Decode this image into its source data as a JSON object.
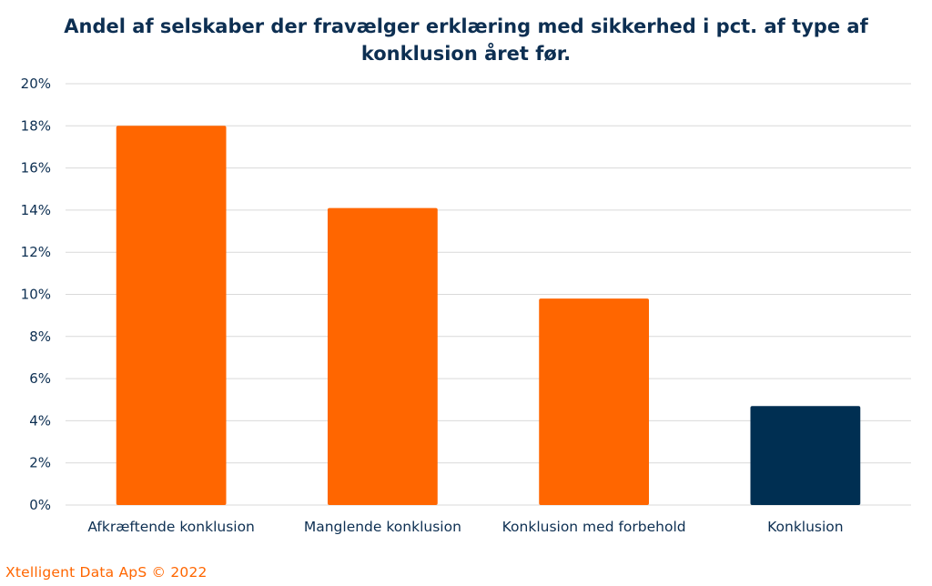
{
  "chart_data": {
    "type": "bar",
    "title_lines": [
      "Andel af selskaber der fravælger erklæring med sikkerhed i pct. af type af",
      "konklusion året før."
    ],
    "categories": [
      "Afkræftende konklusion",
      "Manglende konklusion",
      "Konklusion med forbehold",
      "Konklusion"
    ],
    "values": [
      18.0,
      14.1,
      9.8,
      4.7
    ],
    "bar_colors": [
      "#ff6600",
      "#ff6600",
      "#ff6600",
      "#002f52"
    ],
    "ylim": [
      0,
      20
    ],
    "yticks": [
      0,
      2,
      4,
      6,
      8,
      10,
      12,
      14,
      16,
      18,
      20
    ],
    "ytick_labels": [
      "0%",
      "2%",
      "4%",
      "6%",
      "8%",
      "10%",
      "12%",
      "14%",
      "16%",
      "18%",
      "20%"
    ],
    "xlabel": "",
    "ylabel": "",
    "grid": true,
    "legend": "none"
  },
  "footer": {
    "credit": "Xtelligent Data ApS © 2022"
  },
  "colors": {
    "accent": "#ff6600",
    "navy": "#002f52",
    "text": "#0d2f52",
    "grid": "#d9d9d9"
  }
}
